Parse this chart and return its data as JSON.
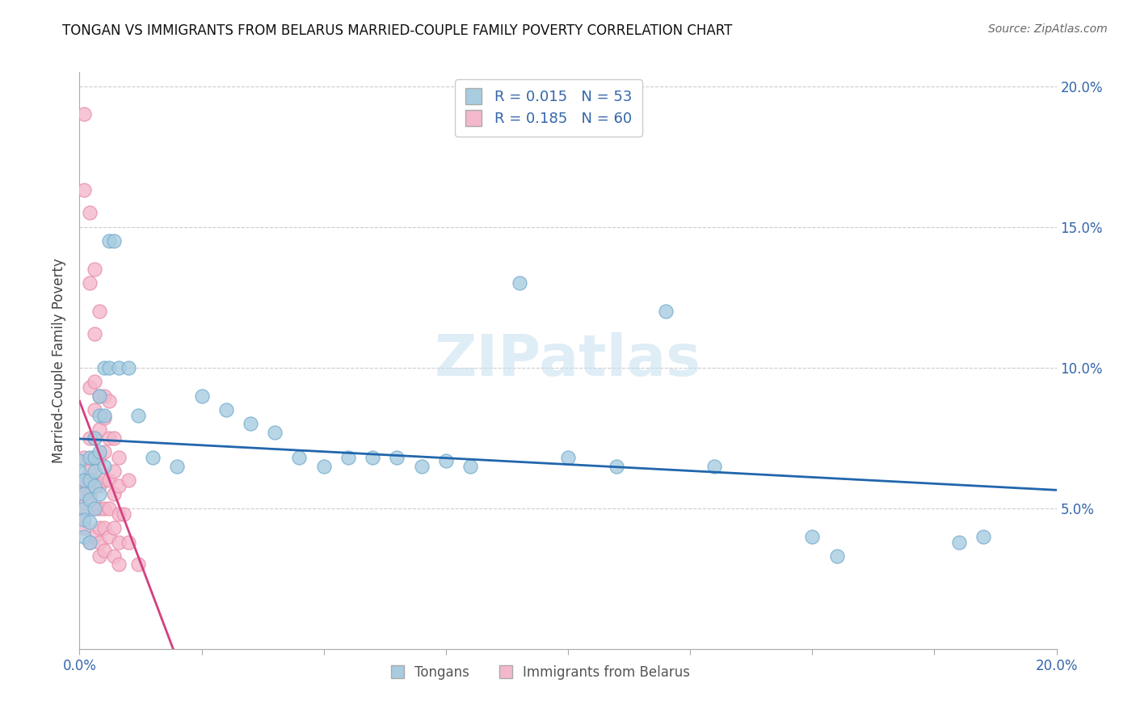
{
  "title": "TONGAN VS IMMIGRANTS FROM BELARUS MARRIED-COUPLE FAMILY POVERTY CORRELATION CHART",
  "source": "Source: ZipAtlas.com",
  "ylabel": "Married-Couple Family Poverty",
  "R_tongan": 0.015,
  "N_tongan": 53,
  "R_belarus": 0.185,
  "N_belarus": 60,
  "tongan_color": "#a8cce0",
  "tongan_edge": "#7ab0d0",
  "belarus_color": "#f4b8cc",
  "belarus_edge": "#e890aa",
  "tongan_line_color": "#2166ac",
  "belarus_line_color": "#d44080",
  "watermark": "ZIPatlas",
  "xlim": [
    0.0,
    0.2
  ],
  "ylim": [
    0.0,
    0.205
  ],
  "dot_size": 150,
  "tongan_x": [
    0.0,
    0.0,
    0.001,
    0.001,
    0.001,
    0.001,
    0.001,
    0.002,
    0.002,
    0.002,
    0.002,
    0.002,
    0.003,
    0.003,
    0.003,
    0.003,
    0.003,
    0.004,
    0.004,
    0.004,
    0.004,
    0.005,
    0.005,
    0.005,
    0.006,
    0.006,
    0.007,
    0.008,
    0.01,
    0.012,
    0.015,
    0.02,
    0.025,
    0.03,
    0.035,
    0.04,
    0.045,
    0.05,
    0.055,
    0.06,
    0.065,
    0.07,
    0.075,
    0.08,
    0.09,
    0.1,
    0.11,
    0.12,
    0.13,
    0.15,
    0.155,
    0.18,
    0.185
  ],
  "tongan_y": [
    0.067,
    0.063,
    0.06,
    0.055,
    0.05,
    0.046,
    0.04,
    0.068,
    0.06,
    0.053,
    0.045,
    0.038,
    0.075,
    0.068,
    0.063,
    0.058,
    0.05,
    0.09,
    0.083,
    0.07,
    0.055,
    0.1,
    0.083,
    0.065,
    0.145,
    0.1,
    0.145,
    0.1,
    0.1,
    0.083,
    0.068,
    0.065,
    0.09,
    0.085,
    0.08,
    0.077,
    0.068,
    0.065,
    0.068,
    0.068,
    0.068,
    0.065,
    0.067,
    0.065,
    0.13,
    0.068,
    0.065,
    0.12,
    0.065,
    0.04,
    0.033,
    0.038,
    0.04
  ],
  "belarus_x": [
    0.0,
    0.0,
    0.0,
    0.001,
    0.001,
    0.001,
    0.001,
    0.001,
    0.001,
    0.002,
    0.002,
    0.002,
    0.002,
    0.002,
    0.002,
    0.002,
    0.003,
    0.003,
    0.003,
    0.003,
    0.003,
    0.003,
    0.003,
    0.003,
    0.003,
    0.004,
    0.004,
    0.004,
    0.004,
    0.004,
    0.004,
    0.004,
    0.004,
    0.004,
    0.005,
    0.005,
    0.005,
    0.005,
    0.005,
    0.005,
    0.005,
    0.006,
    0.006,
    0.006,
    0.006,
    0.006,
    0.007,
    0.007,
    0.007,
    0.007,
    0.007,
    0.008,
    0.008,
    0.008,
    0.008,
    0.008,
    0.009,
    0.01,
    0.01,
    0.012
  ],
  "belarus_y": [
    0.058,
    0.055,
    0.048,
    0.19,
    0.163,
    0.068,
    0.06,
    0.05,
    0.043,
    0.155,
    0.13,
    0.093,
    0.075,
    0.063,
    0.055,
    0.038,
    0.135,
    0.112,
    0.095,
    0.085,
    0.075,
    0.068,
    0.06,
    0.05,
    0.04,
    0.12,
    0.09,
    0.078,
    0.068,
    0.058,
    0.05,
    0.043,
    0.038,
    0.033,
    0.09,
    0.082,
    0.07,
    0.06,
    0.05,
    0.043,
    0.035,
    0.088,
    0.075,
    0.06,
    0.05,
    0.04,
    0.075,
    0.063,
    0.055,
    0.043,
    0.033,
    0.068,
    0.058,
    0.048,
    0.038,
    0.03,
    0.048,
    0.06,
    0.038,
    0.03
  ]
}
